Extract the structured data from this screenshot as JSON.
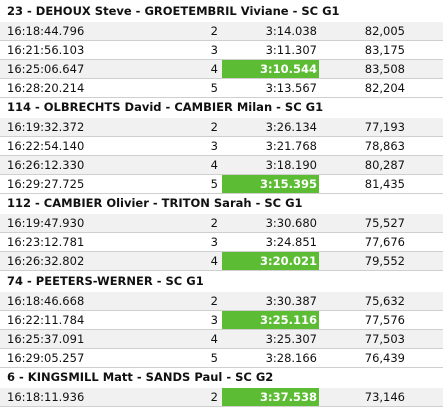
{
  "crews": [
    {
      "title": "23 - DEHOUX Steve - GROETEMBRIL Viviane - SC G1",
      "laps": [
        {
          "time": "16:18:44.796",
          "lap": "2",
          "lap_time": "3:14.038",
          "speed": "82,005",
          "best": false
        },
        {
          "time": "16:21:56.103",
          "lap": "3",
          "lap_time": "3:11.307",
          "speed": "83,175",
          "best": false
        },
        {
          "time": "16:25:06.647",
          "lap": "4",
          "lap_time": "3:10.544",
          "speed": "83,508",
          "best": true
        },
        {
          "time": "16:28:20.214",
          "lap": "5",
          "lap_time": "3:13.567",
          "speed": "82,204",
          "best": false
        }
      ]
    },
    {
      "title": "114 - OLBRECHTS David - CAMBIER Milan - SC G1",
      "laps": [
        {
          "time": "16:19:32.372",
          "lap": "2",
          "lap_time": "3:26.134",
          "speed": "77,193",
          "best": false
        },
        {
          "time": "16:22:54.140",
          "lap": "3",
          "lap_time": "3:21.768",
          "speed": "78,863",
          "best": false
        },
        {
          "time": "16:26:12.330",
          "lap": "4",
          "lap_time": "3:18.190",
          "speed": "80,287",
          "best": false
        },
        {
          "time": "16:29:27.725",
          "lap": "5",
          "lap_time": "3:15.395",
          "speed": "81,435",
          "best": true
        }
      ]
    },
    {
      "title": "112 - CAMBIER Olivier - TRITON Sarah - SC G1",
      "laps": [
        {
          "time": "16:19:47.930",
          "lap": "2",
          "lap_time": "3:30.680",
          "speed": "75,527",
          "best": false
        },
        {
          "time": "16:23:12.781",
          "lap": "3",
          "lap_time": "3:24.851",
          "speed": "77,676",
          "best": false
        },
        {
          "time": "16:26:32.802",
          "lap": "4",
          "lap_time": "3:20.021",
          "speed": "79,552",
          "best": true
        }
      ]
    },
    {
      "title": "74 - PEETERS-WERNER - SC G1",
      "laps": [
        {
          "time": "16:18:46.668",
          "lap": "2",
          "lap_time": "3:30.387",
          "speed": "75,632",
          "best": false
        },
        {
          "time": "16:22:11.784",
          "lap": "3",
          "lap_time": "3:25.116",
          "speed": "77,576",
          "best": true
        },
        {
          "time": "16:25:37.091",
          "lap": "4",
          "lap_time": "3:25.307",
          "speed": "77,503",
          "best": false
        },
        {
          "time": "16:29:05.257",
          "lap": "5",
          "lap_time": "3:28.166",
          "speed": "76,439",
          "best": false
        }
      ]
    },
    {
      "title": "6 - KINGSMILL Matt - SANDS Paul - SC G2",
      "laps": [
        {
          "time": "16:18:11.936",
          "lap": "2",
          "lap_time": "3:37.538",
          "speed": "73,146",
          "best": true
        }
      ]
    }
  ],
  "colors": {
    "best_lap_bg": "#5cbd34",
    "alt_row_bg": "#f1f1f1",
    "row_border": "#cfcfcf"
  }
}
